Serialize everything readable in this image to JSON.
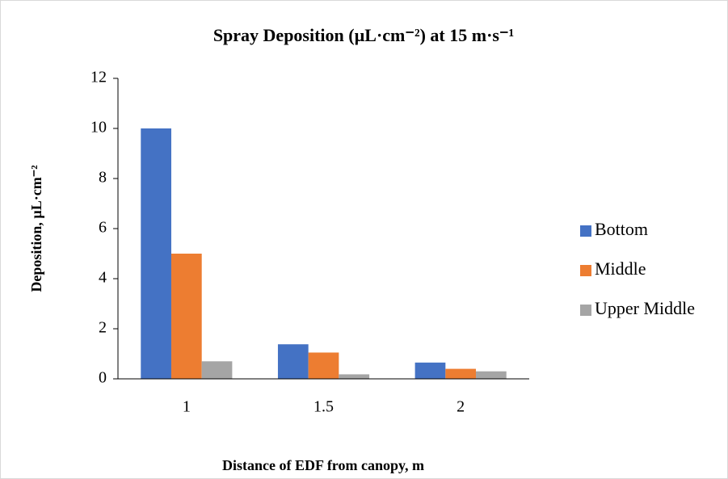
{
  "chart_data": {
    "type": "bar",
    "title": "Spray Deposition (µL·cm⁻²) at 15 m·s⁻¹",
    "x_label": "Distance of EDF from canopy, m",
    "y_label": "Deposition, µL·cm⁻²",
    "categories": [
      "1",
      "1.5",
      "2"
    ],
    "series": [
      {
        "name": "Bottom",
        "color": "#4472c4",
        "values": [
          10,
          1.38,
          0.65
        ]
      },
      {
        "name": "Middle",
        "color": "#ed7d31",
        "values": [
          5,
          1.05,
          0.4
        ]
      },
      {
        "name": "Upper Middle",
        "color": "#a5a5a5",
        "values": [
          0.7,
          0.18,
          0.3
        ]
      }
    ],
    "ylim": [
      0,
      12
    ],
    "yticks": [
      0,
      2,
      4,
      6,
      8,
      10,
      12
    ],
    "grid": false,
    "legend": "right"
  }
}
